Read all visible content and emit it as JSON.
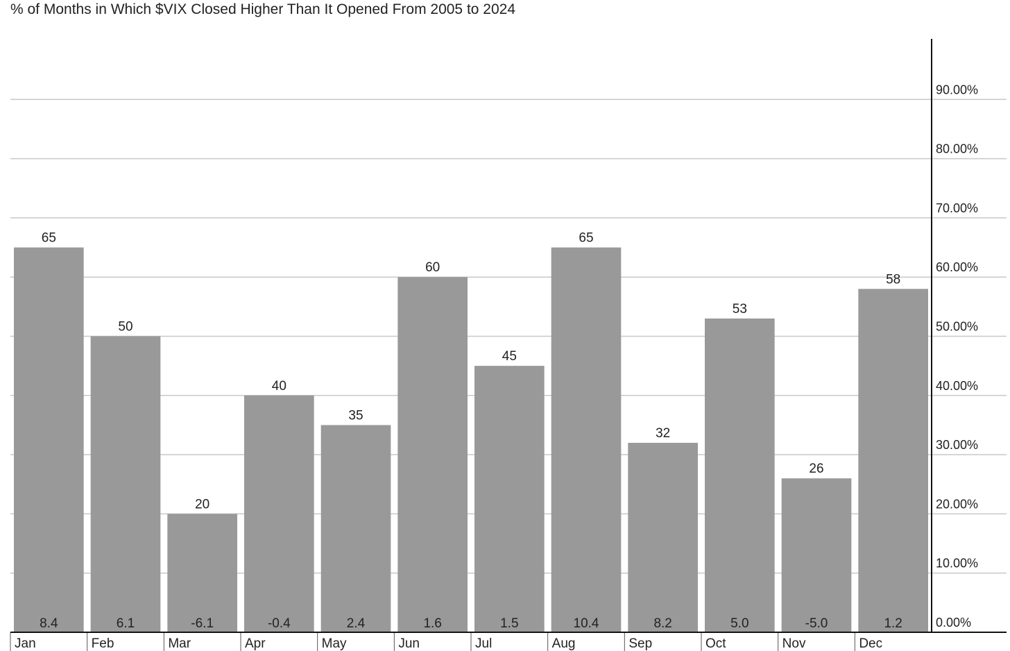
{
  "chart_data": {
    "type": "bar",
    "title": "% of Months in Which $VIX Closed Higher Than It Opened From 2005 to 2024",
    "categories": [
      "Jan",
      "Feb",
      "Mar",
      "Apr",
      "May",
      "Jun",
      "Jul",
      "Aug",
      "Sep",
      "Oct",
      "Nov",
      "Dec"
    ],
    "series": [
      {
        "values": [
          65,
          50,
          20,
          40,
          35,
          60,
          45,
          65,
          32,
          53,
          26,
          58
        ]
      }
    ],
    "bottom_labels": [
      "8.4",
      "6.1",
      "-6.1",
      "-0.4",
      "2.4",
      "1.6",
      "1.5",
      "10.4",
      "8.2",
      "5.0",
      "-5.0",
      "1.2"
    ],
    "y_ticks": [
      0,
      10,
      20,
      30,
      40,
      50,
      60,
      70,
      80,
      90
    ],
    "y_tick_labels": [
      "0.00%",
      "10.00%",
      "20.00%",
      "30.00%",
      "40.00%",
      "50.00%",
      "60.00%",
      "70.00%",
      "80.00%",
      "90.00%"
    ],
    "ylim": [
      0,
      100
    ],
    "y_axis_position": "right",
    "grid": true,
    "legend": "none",
    "xlabel": "",
    "ylabel": "",
    "colors": {
      "bar": "#999999",
      "grid": "#c8c8c8",
      "axis": "#111111",
      "text": "#222222"
    }
  }
}
